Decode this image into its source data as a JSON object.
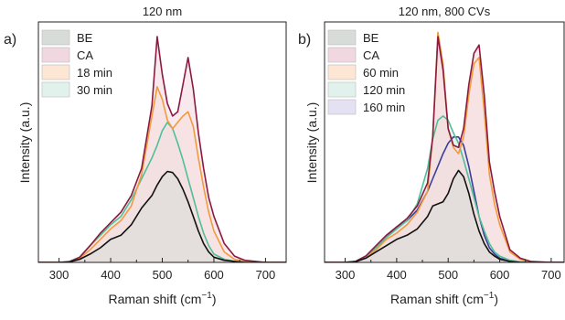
{
  "ylabel": "Intensity (a.u.)",
  "chart_data": [
    {
      "type": "area",
      "panel_label": "a)",
      "title": "120 nm",
      "xlabel": "Raman shift (cm",
      "xlabel_sup": "−1",
      "xlabel_end": ")",
      "xlim": [
        260,
        740
      ],
      "xticks": [
        300,
        400,
        500,
        600,
        700
      ],
      "legend_position": "top-left",
      "x": [
        260,
        300,
        320,
        340,
        360,
        380,
        400,
        420,
        440,
        460,
        480,
        490,
        500,
        510,
        520,
        530,
        540,
        550,
        560,
        570,
        580,
        590,
        600,
        620,
        640,
        660,
        700,
        740
      ],
      "series": [
        {
          "name": "BE",
          "color": "#111111",
          "fill": "#d7dcd9",
          "values": [
            0,
            0,
            0.2,
            1.5,
            4,
            7,
            11,
            13,
            18,
            26,
            32,
            37,
            41,
            43.5,
            43,
            40,
            35,
            29,
            22,
            15,
            9,
            5,
            2.5,
            1,
            0.5,
            0,
            0,
            0
          ]
        },
        {
          "name": "CA",
          "color": "#8b1a3f",
          "fill": "#f1d7e0",
          "values": [
            0,
            0,
            0.3,
            2.5,
            8,
            14,
            19,
            24,
            32,
            45,
            75,
            108,
            90,
            76,
            70,
            72,
            85,
            98,
            83,
            62,
            45,
            31,
            22,
            9,
            3,
            1,
            0,
            0
          ]
        },
        {
          "name": "18 min",
          "color": "#f39a3c",
          "fill": "#fde6d3",
          "values": [
            0,
            0,
            0.3,
            2,
            6,
            11,
            16,
            20,
            27,
            42,
            70,
            84,
            78,
            68,
            64,
            67,
            70,
            72,
            65,
            50,
            36,
            24,
            15,
            5,
            1.5,
            0.5,
            0,
            0
          ]
        },
        {
          "name": "30 min",
          "color": "#4fbf9a",
          "fill": "#e1f2ec",
          "values": [
            0,
            0,
            0.5,
            2.5,
            8,
            13,
            18,
            22,
            30,
            40,
            50,
            56,
            63,
            67,
            64,
            57,
            49,
            40,
            31,
            22,
            14,
            8,
            4,
            1.5,
            0.5,
            0,
            0,
            0
          ]
        }
      ]
    },
    {
      "type": "area",
      "panel_label": "b)",
      "title": "120 nm, 800 CVs",
      "xlabel": "Raman shift (cm",
      "xlabel_sup": "−1",
      "xlabel_end": ")",
      "xlim": [
        260,
        725
      ],
      "xticks": [
        300,
        400,
        500,
        600,
        700
      ],
      "legend_position": "top-left",
      "x": [
        260,
        300,
        320,
        340,
        360,
        380,
        400,
        420,
        440,
        460,
        470,
        480,
        490,
        500,
        510,
        520,
        530,
        540,
        550,
        560,
        570,
        580,
        590,
        600,
        620,
        640,
        660,
        700,
        725
      ],
      "series": [
        {
          "name": "BE",
          "color": "#111111",
          "fill": "#d7dcd9",
          "values": [
            0,
            0,
            0.3,
            2,
            5,
            8,
            11,
            13,
            16,
            22,
            27,
            28,
            29,
            33,
            40,
            44,
            41,
            33,
            23,
            15,
            9,
            5,
            3,
            1.5,
            0.5,
            0,
            0,
            0,
            0
          ]
        },
        {
          "name": "CA",
          "color": "#8b1a3f",
          "fill": "#f1d7e0",
          "values": [
            0,
            0,
            0.5,
            3,
            8,
            13,
            17,
            21,
            27,
            38,
            60,
            108,
            92,
            64,
            56,
            55,
            64,
            85,
            100,
            104,
            80,
            48,
            34,
            22,
            6,
            2,
            0.5,
            0,
            0
          ]
        },
        {
          "name": "60 min",
          "color": "#f39a3c",
          "fill": "#fde6d3",
          "values": [
            0,
            0,
            0.4,
            2,
            6,
            11,
            14,
            18,
            24,
            34,
            60,
            110,
            95,
            64,
            55,
            52,
            60,
            80,
            95,
            98,
            72,
            42,
            28,
            18,
            5,
            1.5,
            0,
            0,
            0
          ]
        },
        {
          "name": "120 min",
          "color": "#4fbf9a",
          "fill": "#e1f2ec",
          "values": [
            0,
            0,
            0.5,
            3,
            7,
            12,
            16,
            20,
            28,
            45,
            59,
            68,
            70,
            68,
            62,
            57,
            49,
            40,
            31,
            22,
            15,
            9,
            5,
            3,
            1,
            0.3,
            0,
            0,
            0
          ]
        },
        {
          "name": "160 min",
          "color": "#3a3f9a",
          "fill": "#e3e1f2",
          "values": [
            0,
            0,
            0.5,
            3,
            7,
            12,
            17,
            20,
            25,
            34,
            40,
            46,
            52,
            57,
            60,
            60,
            56,
            46,
            34,
            22,
            13,
            7,
            4,
            2,
            0.5,
            0,
            0,
            0,
            0
          ]
        }
      ]
    }
  ]
}
